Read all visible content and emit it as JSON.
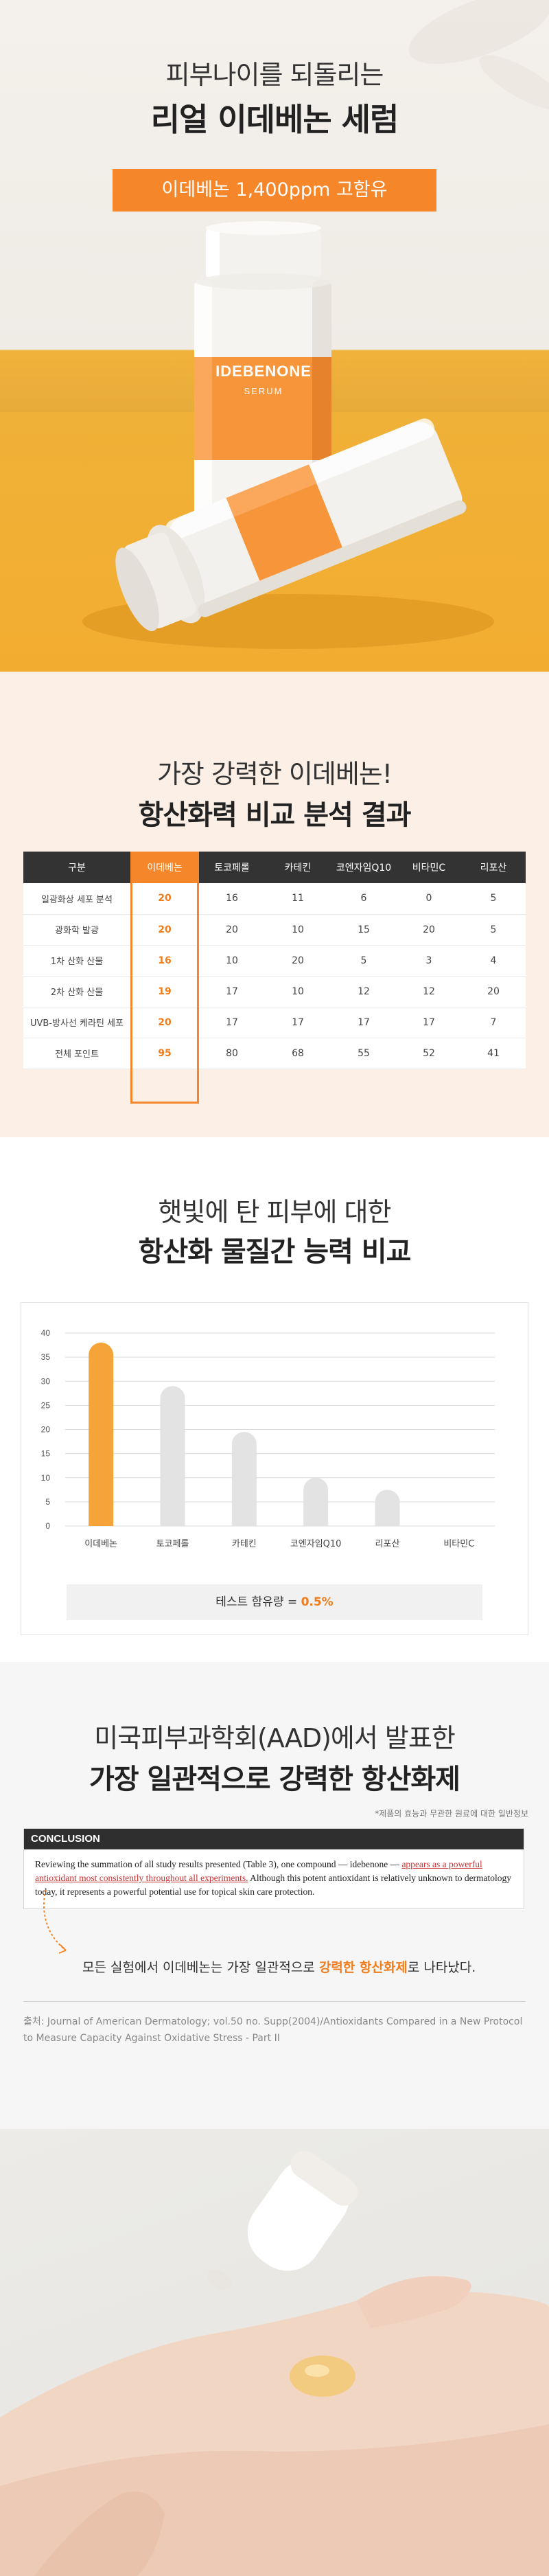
{
  "hero": {
    "title_line1": "피부나이를 되돌리는",
    "title_line2": "리얼 이데베논 세럼",
    "badge": "이데베논 1,400ppm 고함유",
    "bottle_brand": "IDEBENONE",
    "bottle_sub": "SERUM"
  },
  "comparison": {
    "title_line1": "가장 강력한 이데베논!",
    "title_line2": "항산화력 비교 분석 결과",
    "headers": [
      "구분",
      "이데베논",
      "토코페롤",
      "카테킨",
      "코엔자임Q10",
      "비타민C",
      "리포산"
    ],
    "rows": [
      {
        "label": "일광화상 세포 분석",
        "values": [
          "20",
          "16",
          "11",
          "6",
          "0",
          "5"
        ]
      },
      {
        "label": "광화학 발광",
        "values": [
          "20",
          "20",
          "10",
          "15",
          "20",
          "5"
        ]
      },
      {
        "label": "1차 산화 산물",
        "values": [
          "16",
          "10",
          "20",
          "5",
          "3",
          "4"
        ]
      },
      {
        "label": "2차 산화 산물",
        "values": [
          "19",
          "17",
          "10",
          "12",
          "12",
          "20"
        ]
      },
      {
        "label": "UVB-방사선 케라틴 세포",
        "values": [
          "20",
          "17",
          "17",
          "17",
          "17",
          "7"
        ]
      },
      {
        "label": "전체 포인트",
        "values": [
          "95",
          "80",
          "68",
          "55",
          "52",
          "41"
        ]
      }
    ]
  },
  "chart_section": {
    "title_line1": "햇빛에 탄 피부에 대한",
    "title_line2": "항산화 물질간 능력 비교",
    "footer_prefix": "테스트 함유량 = ",
    "footer_value": "0.5%"
  },
  "chart_data": {
    "type": "bar",
    "categories": [
      "이데베논",
      "토코페롤",
      "카테킨",
      "코엔자임Q10",
      "리포산",
      "비타민C"
    ],
    "values": [
      38,
      29,
      19.5,
      10,
      7.5,
      0
    ],
    "ylim": [
      0,
      40
    ],
    "yticks": [
      "0",
      "5",
      "10",
      "15",
      "20",
      "25",
      "30",
      "35",
      "40"
    ],
    "grid": true,
    "colors": {
      "highlight": "#f5a43a",
      "default": "#e3e3e3"
    }
  },
  "paper": {
    "title_line1": "미국피부과학회(AAD)에서 발표한",
    "title_line2": "가장 일관적으로 강력한 항산화제",
    "note": "*제품의 효능과 무관한 원료에 대한 일반정보",
    "conclusion_label": "CONCLUSION",
    "conclusion_text_a": "Reviewing the summation of all study results presented (Table 3), one compound — idebenone —",
    "conclusion_text_b": "appears as a powerful antioxidant most consistently throughout all experiments.",
    "conclusion_text_c": " Although this potent antioxidant is relatively unknown to dermatology today, it represents a powerful potential use for topical skin care protection.",
    "summary_prefix": "모든 실험에서 이데베논는 가장 일관적으로 ",
    "summary_highlight": "강력한 항산화제",
    "summary_suffix": "로 나타났다.",
    "source": "출처: Journal of American Dermatology; vol.50 no. Supp(2004)/Antioxidants Compared in a New Protocol to Measure Capacity Against Oxidative Stress - Part II"
  }
}
